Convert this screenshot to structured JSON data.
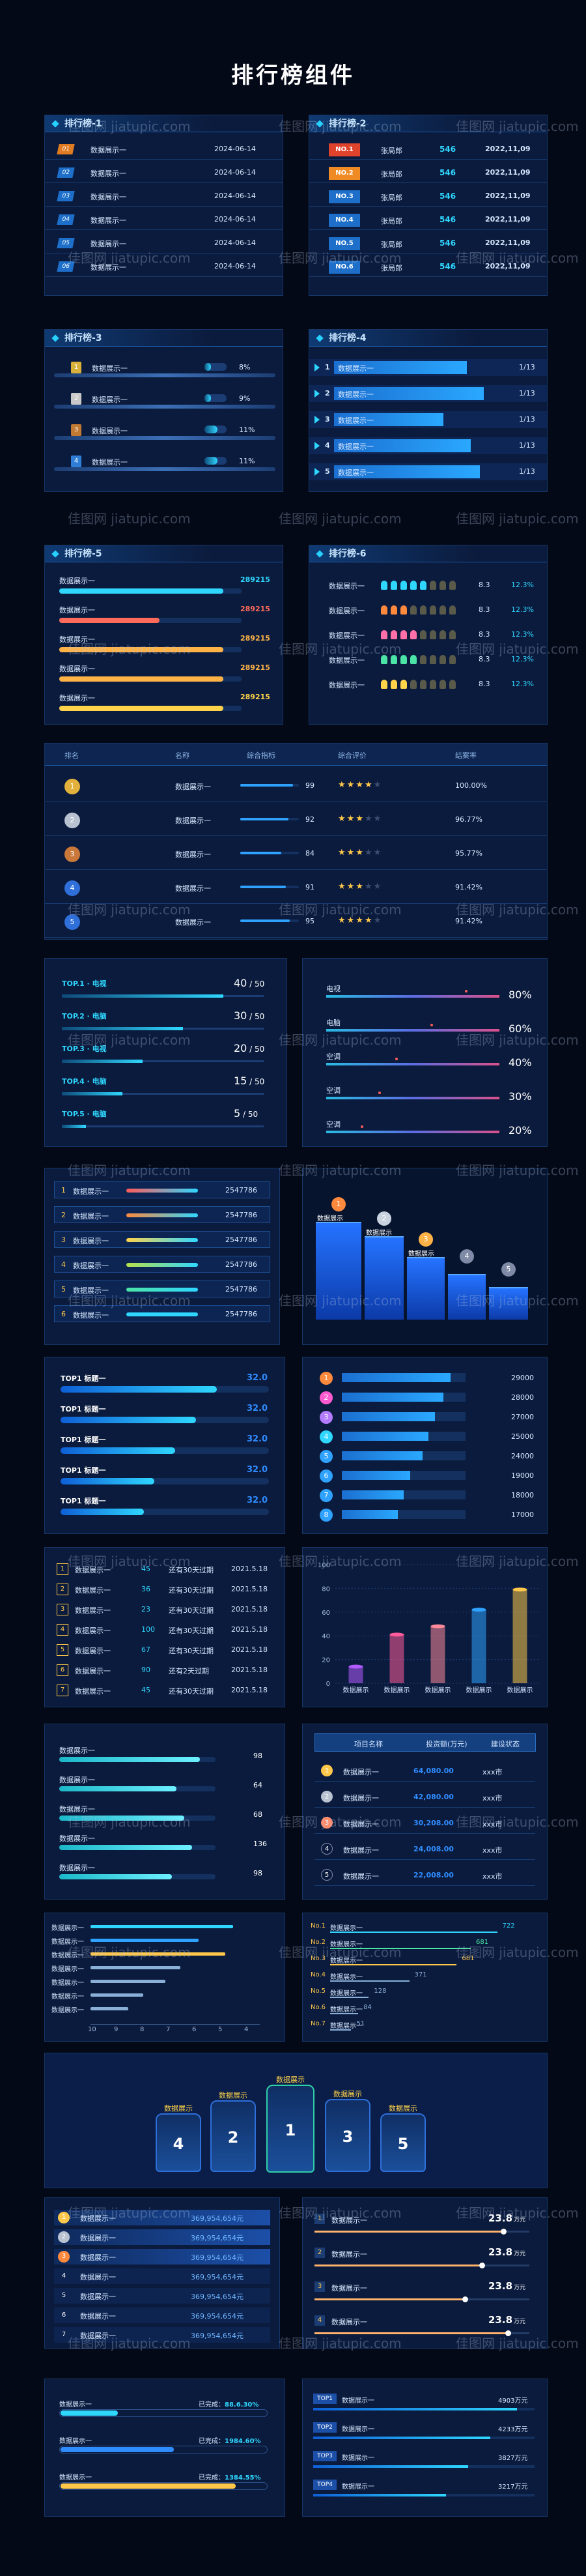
{
  "page": {
    "title": "排行榜组件"
  },
  "watermark": {
    "text": "佳图网 jiatupic.com"
  },
  "p1": {
    "title": "排行榜-1",
    "rows": [
      {
        "rank": "01",
        "label": "数据展示一",
        "date": "2024-06-14"
      },
      {
        "rank": "02",
        "label": "数据展示一",
        "date": "2024-06-14"
      },
      {
        "rank": "03",
        "label": "数据展示一",
        "date": "2024-06-14"
      },
      {
        "rank": "04",
        "label": "数据展示一",
        "date": "2024-06-14"
      },
      {
        "rank": "05",
        "label": "数据展示一",
        "date": "2024-06-14"
      },
      {
        "rank": "06",
        "label": "数据展示一",
        "date": "2024-06-14"
      }
    ]
  },
  "p2": {
    "title": "排行榜-2",
    "rows": [
      {
        "rank": "NO.1",
        "name": "张局郎",
        "value": "546",
        "date": "2022,11,09"
      },
      {
        "rank": "NO.2",
        "name": "张局郎",
        "value": "546",
        "date": "2022,11,09"
      },
      {
        "rank": "NO.3",
        "name": "张局郎",
        "value": "546",
        "date": "2022,11,09"
      },
      {
        "rank": "NO.4",
        "name": "张局郎",
        "value": "546",
        "date": "2022,11,09"
      },
      {
        "rank": "NO.5",
        "name": "张局郎",
        "value": "546",
        "date": "2022,11,09"
      },
      {
        "rank": "NO.6",
        "name": "张局郎",
        "value": "546",
        "date": "2022,11,09"
      }
    ]
  },
  "p3": {
    "title": "排行榜-3",
    "rows": [
      {
        "rank": "1",
        "label": "数据展示一",
        "pct": "8%",
        "fill": 0.3
      },
      {
        "rank": "2",
        "label": "数据展示一",
        "pct": "9%",
        "fill": 0.3
      },
      {
        "rank": "3",
        "label": "数据展示一",
        "pct": "11%",
        "fill": 0.6
      },
      {
        "rank": "4",
        "label": "数据展示一",
        "pct": "11%",
        "fill": 0.6
      }
    ]
  },
  "p4": {
    "title": "排行榜-4",
    "rows": [
      {
        "rank": "1",
        "label": "数据展示一",
        "value": "1/13",
        "fill": 0.73
      },
      {
        "rank": "2",
        "label": "数据展示一",
        "value": "1/13",
        "fill": 0.82
      },
      {
        "rank": "3",
        "label": "数据展示一",
        "value": "1/13",
        "fill": 0.6
      },
      {
        "rank": "4",
        "label": "数据展示一",
        "value": "1/13",
        "fill": 0.75
      },
      {
        "rank": "5",
        "label": "数据展示一",
        "value": "1/13",
        "fill": 0.8
      }
    ]
  },
  "p5": {
    "title": "排行榜-5",
    "rows": [
      {
        "label": "数据展示一",
        "value": "289215",
        "fill": 0.9,
        "color": "#2fd7ff"
      },
      {
        "label": "数据展示一",
        "value": "289215",
        "fill": 0.55,
        "color": "#ff6b5a"
      },
      {
        "label": "数据展示一",
        "value": "289215",
        "fill": 0.9,
        "color": "#ffb347"
      },
      {
        "label": "数据展示一",
        "value": "289215",
        "fill": 0.9,
        "color": "#ffb347"
      },
      {
        "label": "数据展示一",
        "value": "289215",
        "fill": 0.9,
        "color": "#ffd34a"
      }
    ]
  },
  "p6": {
    "title": "排行榜-6",
    "rows": [
      {
        "label": "数据展示一",
        "score": "8.3",
        "pct": "12.3%",
        "filled": 5,
        "color": "#2fd7ff"
      },
      {
        "label": "数据展示一",
        "score": "8.3",
        "pct": "12.3%",
        "filled": 3,
        "color": "#ff8a3d"
      },
      {
        "label": "数据展示一",
        "score": "8.3",
        "pct": "12.3%",
        "filled": 4,
        "color": "#ff6fa8"
      },
      {
        "label": "数据展示一",
        "score": "8.3",
        "pct": "12.3%",
        "filled": 4,
        "color": "#4be3a6"
      },
      {
        "label": "数据展示一",
        "score": "8.3",
        "pct": "12.3%",
        "filled": 3,
        "color": "#ffd34a"
      }
    ]
  },
  "table7": {
    "headers": [
      "排名",
      "名称",
      "综合指标",
      "综合评价",
      "结案率"
    ],
    "rows": [
      {
        "rank": "1",
        "name": "数据展示一",
        "score": "99",
        "stars": 4,
        "rate": "100.00%",
        "fill": 0.9
      },
      {
        "rank": "2",
        "name": "数据展示一",
        "score": "92",
        "stars": 3,
        "rate": "96.77%",
        "fill": 0.82
      },
      {
        "rank": "3",
        "name": "数据展示一",
        "score": "84",
        "stars": 3,
        "rate": "95.77%",
        "fill": 0.7
      },
      {
        "rank": "4",
        "name": "数据展示一",
        "score": "91",
        "stars": 3,
        "rate": "91.42%",
        "fill": 0.78
      },
      {
        "rank": "5",
        "name": "数据展示一",
        "score": "95",
        "stars": 4,
        "rate": "91.42%",
        "fill": 0.84
      }
    ]
  },
  "p8a": {
    "rows": [
      {
        "label": "TOP.1 · 电视",
        "value": "40",
        "max": "50",
        "fill": 0.8
      },
      {
        "label": "TOP.2 · 电脑",
        "value": "30",
        "max": "50",
        "fill": 0.6
      },
      {
        "label": "TOP.3 · 电视",
        "value": "20",
        "max": "50",
        "fill": 0.4
      },
      {
        "label": "TOP.4 · 电脑",
        "value": "15",
        "max": "50",
        "fill": 0.3
      },
      {
        "label": "TOP.5 · 电脑",
        "value": "5",
        "max": "50",
        "fill": 0.12
      }
    ]
  },
  "p8b": {
    "rows": [
      {
        "label": "电视",
        "pct": "80%",
        "fill": 0.8
      },
      {
        "label": "电脑",
        "pct": "60%",
        "fill": 0.6
      },
      {
        "label": "空调",
        "pct": "40%",
        "fill": 0.4
      },
      {
        "label": "空调",
        "pct": "30%",
        "fill": 0.3
      },
      {
        "label": "空调",
        "pct": "20%",
        "fill": 0.2
      }
    ]
  },
  "p9a": {
    "rows": [
      {
        "rank": "1",
        "label": "数据展示一",
        "value": "2547786",
        "color": "#ff5b5b"
      },
      {
        "rank": "2",
        "label": "数据展示一",
        "value": "2547786",
        "color": "#ff8a3d"
      },
      {
        "rank": "3",
        "label": "数据展示一",
        "value": "2547786",
        "color": "#ffd34a"
      },
      {
        "rank": "4",
        "label": "数据展示一",
        "value": "2547786",
        "color": "#b8e04a"
      },
      {
        "rank": "5",
        "label": "数据展示一",
        "value": "2547786",
        "color": "#4be3a6"
      },
      {
        "rank": "6",
        "label": "数据展示一",
        "value": "2547786",
        "color": "#2fd7ff"
      }
    ]
  },
  "p9b": {
    "labels": [
      "数据展示",
      "数据展示",
      "数据展示"
    ],
    "ranks": [
      "1",
      "2",
      "3",
      "4",
      "5"
    ]
  },
  "p10a": {
    "rows": [
      {
        "label": "TOP1  标题一",
        "value": "32.0",
        "fill": 0.75
      },
      {
        "label": "TOP1  标题一",
        "value": "32.0",
        "fill": 0.65
      },
      {
        "label": "TOP1  标题一",
        "value": "32.0",
        "fill": 0.55
      },
      {
        "label": "TOP1  标题一",
        "value": "32.0",
        "fill": 0.45
      },
      {
        "label": "TOP1  标题一",
        "value": "32.0",
        "fill": 0.4
      }
    ]
  },
  "p10b": {
    "rows": [
      {
        "rank": "1",
        "value": "29000",
        "fill": 0.88,
        "color": "#ff8a3d"
      },
      {
        "rank": "2",
        "value": "28000",
        "fill": 0.82,
        "color": "#ff5bd0"
      },
      {
        "rank": "3",
        "value": "27000",
        "fill": 0.75,
        "color": "#b47bff"
      },
      {
        "rank": "4",
        "value": "25000",
        "fill": 0.7,
        "color": "#2fd7ff"
      },
      {
        "rank": "5",
        "value": "24000",
        "fill": 0.65,
        "color": "#2fa2ff"
      },
      {
        "rank": "6",
        "value": "19000",
        "fill": 0.55,
        "color": "#2fa2ff"
      },
      {
        "rank": "7",
        "value": "18000",
        "fill": 0.5,
        "color": "#2fa2ff"
      },
      {
        "rank": "8",
        "value": "17000",
        "fill": 0.45,
        "color": "#2fa2ff"
      }
    ]
  },
  "p11a": {
    "rows": [
      {
        "rank": "1",
        "label": "数据展示一",
        "num": "45",
        "note": "还有30天过期",
        "date": "2021.5.18"
      },
      {
        "rank": "2",
        "label": "数据展示一",
        "num": "36",
        "note": "还有30天过期",
        "date": "2021.5.18"
      },
      {
        "rank": "3",
        "label": "数据展示一",
        "num": "23",
        "note": "还有30天过期",
        "date": "2021.5.18"
      },
      {
        "rank": "4",
        "label": "数据展示一",
        "num": "100",
        "note": "还有30天过期",
        "date": "2021.5.18"
      },
      {
        "rank": "5",
        "label": "数据展示一",
        "num": "67",
        "note": "还有30天过期",
        "date": "2021.5.18"
      },
      {
        "rank": "6",
        "label": "数据展示一",
        "num": "90",
        "note": "还有2天过期",
        "date": "2021.5.18"
      },
      {
        "rank": "7",
        "label": "数据展示一",
        "num": "45",
        "note": "还有30天过期",
        "date": "2021.5.18"
      }
    ]
  },
  "chart_data": {
    "type": "bar",
    "title": "",
    "categories": [
      "数据展示",
      "数据展示",
      "数据展示",
      "数据展示",
      "数据展示"
    ],
    "values": [
      14,
      41,
      48,
      62,
      79
    ],
    "ylim": [
      0,
      100
    ],
    "yticks": [
      0,
      20,
      40,
      60,
      80,
      100
    ],
    "colors": [
      "#b45bff",
      "#ff5b9a",
      "#ff8a9a",
      "#2fa2ff",
      "#ffc84a"
    ]
  },
  "p12a": {
    "rows": [
      {
        "label": "数据展示一",
        "value": "98",
        "fill": 0.9
      },
      {
        "label": "数据展示一",
        "value": "64",
        "fill": 0.75
      },
      {
        "label": "数据展示一",
        "value": "68",
        "fill": 0.8
      },
      {
        "label": "数据展示一",
        "value": "136",
        "fill": 0.85
      },
      {
        "label": "数据展示一",
        "value": "98",
        "fill": 0.72
      }
    ]
  },
  "p12b": {
    "headers": [
      "项目名称",
      "投资额(万元)",
      "建设状态"
    ],
    "rows": [
      {
        "rank": "1",
        "name": "数据展示一",
        "amount": "64,080.00",
        "status": "xxx市"
      },
      {
        "rank": "2",
        "name": "数据展示一",
        "amount": "42,080.00",
        "status": "xxx市"
      },
      {
        "rank": "3",
        "name": "数据展示一",
        "amount": "30,208.00",
        "status": "xxx市"
      },
      {
        "rank": "4",
        "name": "数据展示一",
        "amount": "24,008.00",
        "status": "xxx市"
      },
      {
        "rank": "5",
        "name": "数据展示一",
        "amount": "22,008.00",
        "status": "xxx市"
      }
    ]
  },
  "p13a": {
    "rows": [
      {
        "label": "数据展示一",
        "fill": 0.95,
        "color": "#2fd7ff"
      },
      {
        "label": "数据展示一",
        "fill": 0.72,
        "color": "#2fa2ff"
      },
      {
        "label": "数据展示一",
        "fill": 0.9,
        "color": "#ffc84a"
      },
      {
        "label": "数据展示一",
        "fill": 0.6,
        "color": "#8ab0d8"
      },
      {
        "label": "数据展示一",
        "fill": 0.5,
        "color": "#8ab0d8"
      },
      {
        "label": "数据展示一",
        "fill": 0.35,
        "color": "#8ab0d8"
      },
      {
        "label": "数据展示一",
        "fill": 0.25,
        "color": "#8ab0d8"
      }
    ],
    "axis": [
      "10",
      "9",
      "8",
      "7",
      "6",
      "5",
      "4"
    ]
  },
  "p13b": {
    "rows": [
      {
        "rank": "No.1",
        "label": "数据展示一",
        "value": "722",
        "fill": 0.95,
        "color": "#2fd7ff"
      },
      {
        "rank": "No.2",
        "label": "数据展示一",
        "value": "681",
        "fill": 0.8,
        "color": "#4be3a6"
      },
      {
        "rank": "No.3",
        "label": "数据展示一",
        "value": "681",
        "fill": 0.72,
        "color": "#ffc84a"
      },
      {
        "rank": "No.4",
        "label": "数据展示一",
        "value": "371",
        "fill": 0.45,
        "color": "#8ab0d8"
      },
      {
        "rank": "No.5",
        "label": "数据展示一",
        "value": "128",
        "fill": 0.22,
        "color": "#8ab0d8"
      },
      {
        "rank": "No.6",
        "label": "数据展示一",
        "value": "84",
        "fill": 0.16,
        "color": "#8ab0d8"
      },
      {
        "rank": "No.7",
        "label": "数据展示一",
        "value": "51",
        "fill": 0.12,
        "color": "#8ab0d8"
      }
    ]
  },
  "p14": {
    "labels": [
      "数据展示",
      "数据展示",
      "数据展示",
      "数据展示",
      "数据展示"
    ],
    "ranks": [
      "4",
      "2",
      "1",
      "3",
      "5"
    ]
  },
  "p15a": {
    "rows": [
      {
        "rank": "1",
        "label": "数据展示一",
        "value": "369,954,654元"
      },
      {
        "rank": "2",
        "label": "数据展示一",
        "value": "369,954,654元"
      },
      {
        "rank": "3",
        "label": "数据展示一",
        "value": "369,954,654元"
      },
      {
        "rank": "4",
        "label": "数据展示一",
        "value": "369,954,654元"
      },
      {
        "rank": "5",
        "label": "数据展示一",
        "value": "369,954,654元"
      },
      {
        "rank": "6",
        "label": "数据展示一",
        "value": "369,954,654元"
      },
      {
        "rank": "7",
        "label": "数据展示一",
        "value": "369,954,654元"
      }
    ]
  },
  "p15b": {
    "rows": [
      {
        "rank": "1",
        "label": "数据展示一",
        "value": "23.8",
        "unit": "万元",
        "fill": 0.88
      },
      {
        "rank": "2",
        "label": "数据展示一",
        "value": "23.8",
        "unit": "万元",
        "fill": 0.78
      },
      {
        "rank": "3",
        "label": "数据展示一",
        "value": "23.8",
        "unit": "万元",
        "fill": 0.7
      },
      {
        "rank": "4",
        "label": "数据展示一",
        "value": "23.8",
        "unit": "万元",
        "fill": 0.9
      }
    ]
  },
  "p16a": {
    "rows": [
      {
        "label": "数据展示一",
        "status": "已完成：",
        "value": "88.6.30%",
        "fill": 0.28
      },
      {
        "label": "数据展示一",
        "status": "已完成：",
        "value": "1984.60%",
        "fill": 0.55
      },
      {
        "label": "数据展示一",
        "status": "已完成：",
        "value": "1384.55%",
        "fill": 0.85
      }
    ]
  },
  "p16b": {
    "rows": [
      {
        "rank": "TOP1",
        "label": "数据展示一",
        "value": "4903万元",
        "fill": 0.92
      },
      {
        "rank": "TOP2",
        "label": "数据展示一",
        "value": "4233万元",
        "fill": 0.8
      },
      {
        "rank": "TOP3",
        "label": "数据展示一",
        "value": "3827万元",
        "fill": 0.7
      },
      {
        "rank": "TOP4",
        "label": "数据展示一",
        "value": "3217万元",
        "fill": 0.6
      }
    ]
  }
}
